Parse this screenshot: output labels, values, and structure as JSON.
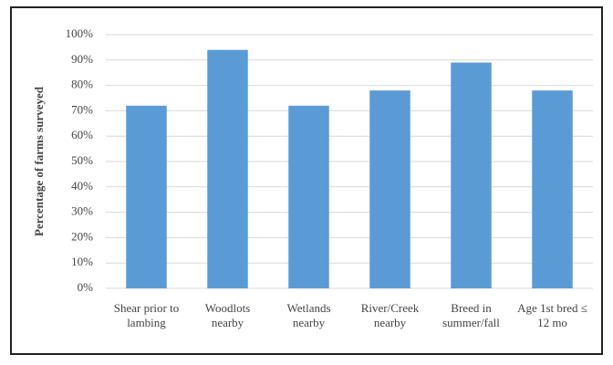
{
  "chart_data": {
    "type": "bar",
    "y_label": "Percentage of farms surveyed",
    "categories": [
      "Shear prior to lambing",
      "Woodlots nearby",
      "Wetlands nearby",
      "River/Creek nearby",
      "Breed in summer/fall",
      "Age 1st bred ≤ 12 mo"
    ],
    "values": [
      72,
      94,
      72,
      78,
      89,
      78
    ],
    "color": "#5b9bd5",
    "ylim": [
      0,
      100
    ],
    "yticks": [
      {
        "value": 0,
        "label": "0%"
      },
      {
        "value": 10,
        "label": "10%"
      },
      {
        "value": 20,
        "label": "20%"
      },
      {
        "value": 30,
        "label": "30%"
      },
      {
        "value": 40,
        "label": "40%"
      },
      {
        "value": 50,
        "label": "50%"
      },
      {
        "value": 60,
        "label": "60%"
      },
      {
        "value": 70,
        "label": "70%"
      },
      {
        "value": 80,
        "label": "80%"
      },
      {
        "value": 90,
        "label": "90%"
      },
      {
        "value": 100,
        "label": "100%"
      }
    ],
    "grid": true
  }
}
